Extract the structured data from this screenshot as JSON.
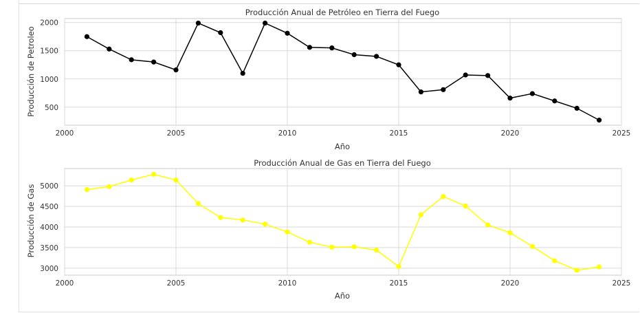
{
  "chart_data": [
    {
      "type": "line",
      "title": "Producción Anual de Petróleo en Tierra del Fuego",
      "xlabel": "Año",
      "ylabel": "Producción de Petroleo",
      "xlim": [
        2000,
        2025
      ],
      "ylim": [
        180,
        2070
      ],
      "xticks": [
        2000,
        2005,
        2010,
        2015,
        2020,
        2025
      ],
      "yticks": [
        500,
        1000,
        1500,
        2000
      ],
      "grid": true,
      "color": "#000000",
      "x": [
        2001,
        2002,
        2003,
        2004,
        2005,
        2006,
        2007,
        2008,
        2009,
        2010,
        2011,
        2012,
        2013,
        2014,
        2015,
        2016,
        2017,
        2018,
        2019,
        2020,
        2021,
        2022,
        2023,
        2024
      ],
      "y": [
        1750,
        1530,
        1340,
        1300,
        1160,
        1990,
        1820,
        1100,
        1990,
        1810,
        1560,
        1550,
        1430,
        1400,
        1250,
        770,
        810,
        1070,
        1060,
        660,
        740,
        610,
        480,
        270
      ]
    },
    {
      "type": "line",
      "title": "Producción Anual de Gas en Tierra del Fuego",
      "xlabel": "Año",
      "ylabel": "Producción de Gas",
      "xlim": [
        2000,
        2025
      ],
      "ylim": [
        2830,
        5420
      ],
      "xticks": [
        2000,
        2005,
        2010,
        2015,
        2020,
        2025
      ],
      "yticks": [
        3000,
        3500,
        4000,
        4500,
        5000
      ],
      "grid": true,
      "color": "#ffff00",
      "x": [
        2001,
        2002,
        2003,
        2004,
        2005,
        2006,
        2007,
        2008,
        2009,
        2010,
        2011,
        2012,
        2013,
        2014,
        2015,
        2016,
        2017,
        2018,
        2019,
        2020,
        2021,
        2022,
        2023,
        2024
      ],
      "y": [
        4910,
        4980,
        5140,
        5280,
        5140,
        4570,
        4230,
        4170,
        4070,
        3880,
        3630,
        3510,
        3520,
        3440,
        3040,
        4300,
        4740,
        4510,
        4050,
        3860,
        3530,
        3180,
        2950,
        3030
      ]
    }
  ]
}
